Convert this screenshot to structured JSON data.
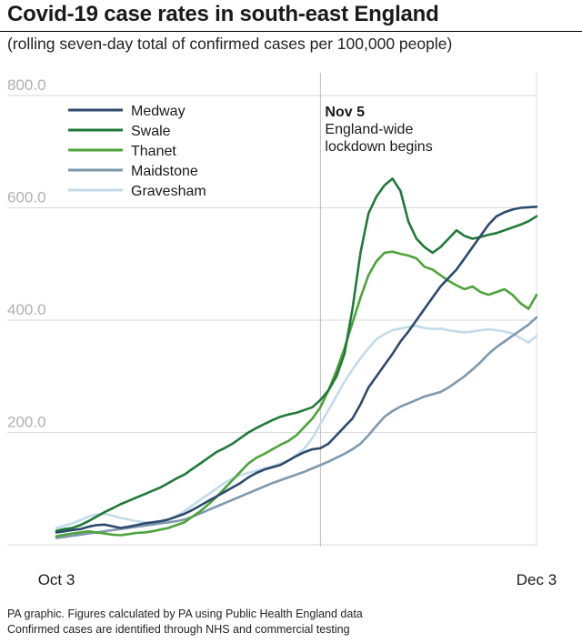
{
  "title": "Covid-19 case rates in south-east England",
  "subtitle": "(rolling seven-day total of confirmed cases per 100,000 people)",
  "footer": {
    "line1": "PA graphic. Figures calculated by PA using Public Health England data",
    "line2": "Confirmed cases are identified through NHS and commercial testing"
  },
  "chart_data": {
    "type": "line",
    "title": "Covid-19 case rates in south-east England",
    "xlabel": "",
    "ylabel": "",
    "x_start_label": "Oct 3",
    "x_end_label": "Dec 3",
    "x_days": 61,
    "ylim": [
      0,
      800
    ],
    "yticks": [
      200,
      400,
      600,
      800
    ],
    "ytick_labels": [
      "200.0",
      "400.0",
      "600.0",
      "800.0"
    ],
    "annotation": {
      "day": 33,
      "label_bold": "Nov 5",
      "line1": "England-wide",
      "line2": "lockdown begins"
    },
    "legend_position": "top-left",
    "series": [
      {
        "name": "Medway",
        "color": "#2c4a6e",
        "values": [
          22,
          24,
          26,
          28,
          32,
          35,
          36,
          33,
          30,
          32,
          35,
          38,
          40,
          42,
          45,
          50,
          55,
          62,
          70,
          78,
          86,
          94,
          102,
          110,
          120,
          128,
          134,
          138,
          142,
          150,
          158,
          165,
          170,
          172,
          180,
          195,
          210,
          225,
          250,
          280,
          300,
          320,
          340,
          362,
          380,
          400,
          420,
          440,
          460,
          475,
          490,
          510,
          530,
          550,
          570,
          585,
          592,
          597,
          600,
          601,
          602
        ]
      },
      {
        "name": "Swale",
        "color": "#1f7a3a",
        "values": [
          25,
          28,
          30,
          35,
          42,
          50,
          58,
          65,
          72,
          78,
          84,
          90,
          96,
          102,
          110,
          118,
          125,
          135,
          145,
          155,
          165,
          172,
          180,
          190,
          200,
          208,
          215,
          222,
          228,
          232,
          235,
          240,
          245,
          258,
          275,
          300,
          340,
          420,
          520,
          590,
          620,
          640,
          652,
          630,
          575,
          545,
          530,
          520,
          530,
          545,
          560,
          550,
          545,
          548,
          552,
          555,
          560,
          565,
          570,
          576,
          585
        ]
      },
      {
        "name": "Thanet",
        "color": "#4ea33b",
        "values": [
          15,
          18,
          20,
          22,
          24,
          22,
          20,
          18,
          17,
          19,
          21,
          22,
          24,
          27,
          30,
          35,
          40,
          50,
          60,
          72,
          85,
          100,
          115,
          130,
          145,
          155,
          162,
          170,
          178,
          185,
          195,
          210,
          225,
          245,
          275,
          310,
          350,
          395,
          440,
          480,
          505,
          520,
          522,
          518,
          515,
          510,
          495,
          490,
          480,
          470,
          462,
          455,
          460,
          450,
          445,
          450,
          455,
          445,
          430,
          420,
          445
        ]
      },
      {
        "name": "Maidstone",
        "color": "#7f98ad",
        "values": [
          12,
          14,
          16,
          18,
          20,
          22,
          24,
          26,
          28,
          30,
          32,
          34,
          36,
          38,
          40,
          42,
          45,
          50,
          56,
          62,
          68,
          74,
          80,
          86,
          92,
          98,
          104,
          110,
          115,
          120,
          125,
          130,
          136,
          142,
          148,
          155,
          162,
          170,
          180,
          195,
          212,
          228,
          238,
          246,
          252,
          258,
          264,
          268,
          272,
          280,
          290,
          300,
          312,
          325,
          340,
          352,
          362,
          372,
          382,
          392,
          405
        ]
      },
      {
        "name": "Gravesham",
        "color": "#c3dbe9",
        "values": [
          30,
          34,
          38,
          44,
          50,
          54,
          55,
          52,
          48,
          45,
          42,
          40,
          38,
          40,
          45,
          52,
          60,
          70,
          80,
          90,
          100,
          110,
          118,
          124,
          128,
          132,
          136,
          140,
          145,
          150,
          160,
          172,
          190,
          215,
          240,
          265,
          290,
          312,
          332,
          350,
          366,
          375,
          382,
          385,
          388,
          390,
          386,
          384,
          385,
          382,
          380,
          378,
          380,
          382,
          384,
          382,
          380,
          376,
          368,
          360,
          372
        ]
      }
    ]
  }
}
